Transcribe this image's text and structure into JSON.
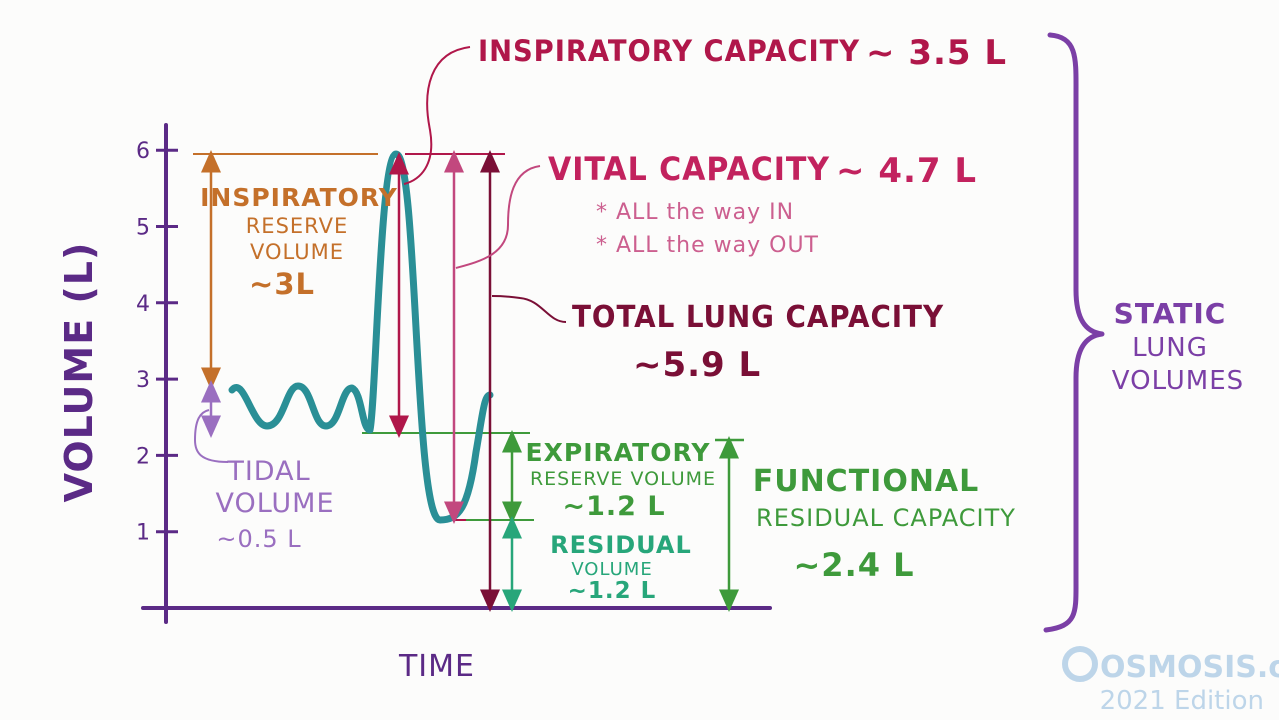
{
  "axes": {
    "ylabel": "VOLUME (L)",
    "xlabel": "TIME",
    "ticks": [
      "1",
      "2",
      "3",
      "4",
      "5",
      "6"
    ],
    "tick_values": [
      1,
      2,
      3,
      4,
      5,
      6
    ]
  },
  "volumes": {
    "irv": {
      "line1": "INSPIRATORY",
      "line2": "RESERVE",
      "line3": "VOLUME",
      "value": "~3L"
    },
    "tidal": {
      "line1": "TIDAL",
      "line2": "VOLUME",
      "value": "~0.5 L"
    },
    "erv": {
      "line1": "EXPIRATORY",
      "line2": "RESERVE VOLUME",
      "value": "~1.2 L"
    },
    "rv": {
      "line1": "RESIDUAL",
      "line2": "VOLUME",
      "value": "~1.2 L"
    }
  },
  "capacities": {
    "ic": {
      "label": "INSPIRATORY CAPACITY",
      "value": "~ 3.5 L"
    },
    "vc": {
      "label": "VITAL CAPACITY",
      "value": "~ 4.7 L",
      "note1": "* ALL the way IN",
      "note2": "* ALL the way OUT"
    },
    "tlc": {
      "label": "TOTAL LUNG CAPACITY",
      "value": "~5.9 L"
    },
    "frc": {
      "line1": "FUNCTIONAL",
      "line2": "RESIDUAL CAPACITY",
      "value": "~2.4 L"
    }
  },
  "group": {
    "line1": "STATIC",
    "line2": "LUNG",
    "line3": "VOLUMES"
  },
  "brand": {
    "name": "OSMOSIS.org",
    "edition": "2021 Edition"
  },
  "colors": {
    "axis": "#5b2a86",
    "trace": "#2a8f96",
    "crimson": "#b0174a",
    "dark_crimson": "#7a0f36",
    "orange": "#c4702a",
    "violet": "#9a6fc0",
    "green": "#3e9a3b",
    "teal_green": "#27a67a",
    "pink": "#c2487e",
    "brace": "#7b3fa6"
  }
}
